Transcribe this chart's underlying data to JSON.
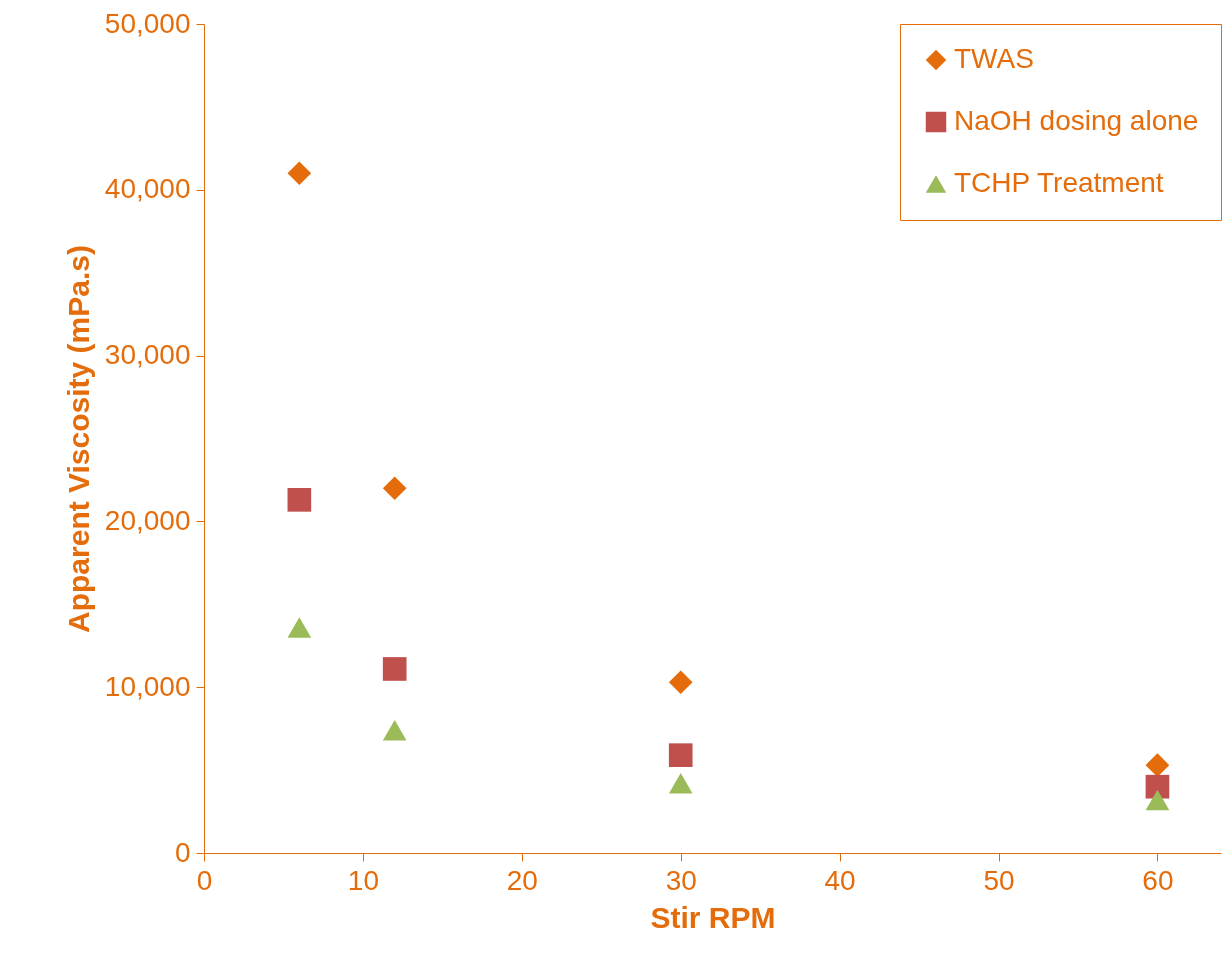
{
  "chart_data": {
    "type": "scatter",
    "xlabel": "Stir RPM",
    "ylabel": "Apparent Viscosity (mPa.s)",
    "x": [
      6,
      12,
      30,
      60
    ],
    "series": [
      {
        "name": "TWAS",
        "color": "#e46c0a",
        "marker": "diamond",
        "values": [
          41000,
          22000,
          10300,
          5300
        ]
      },
      {
        "name": "NaOH dosing alone",
        "color": "#c0504d",
        "marker": "square",
        "values": [
          21300,
          11100,
          5900,
          4000
        ]
      },
      {
        "name": "TCHP Treatment",
        "color": "#9bbb59",
        "marker": "triangle",
        "values": [
          13600,
          7400,
          4200,
          3200
        ]
      }
    ],
    "xlim": [
      0,
      64
    ],
    "xticks": [
      0,
      10,
      20,
      30,
      40,
      50,
      60
    ],
    "ylim": [
      0,
      50000
    ],
    "yticks": [
      0,
      {
        "value": 10000,
        "label": "10,000"
      },
      {
        "value": 20000,
        "label": "20,000"
      },
      {
        "value": 30000,
        "label": "30,000"
      },
      {
        "value": 40000,
        "label": "40,000"
      },
      {
        "value": 50000,
        "label": "50,000"
      }
    ],
    "grid": false,
    "legend": "top right"
  }
}
